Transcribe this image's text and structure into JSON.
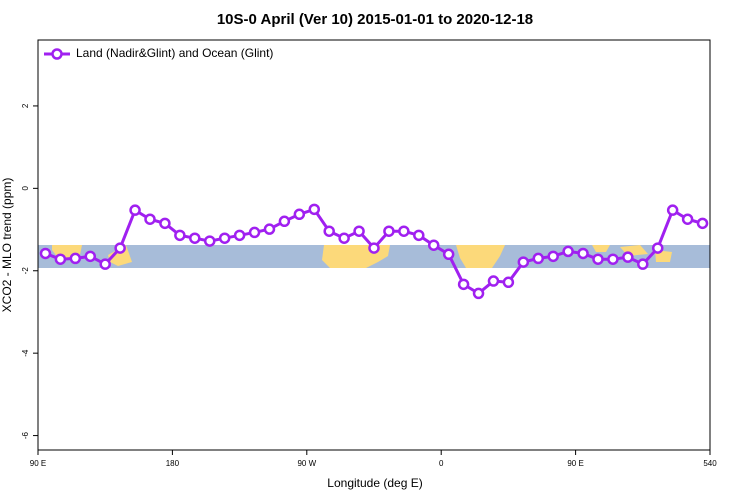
{
  "chart_data": {
    "type": "line",
    "title": "10S-0 April (Ver 10)   2015-01-01 to 2020-12-18",
    "x_label": "Longitude (deg E)",
    "y_label": "XCO2 - MLO trend (ppm)",
    "x": [
      95,
      105,
      115,
      125,
      135,
      145,
      155,
      165,
      175,
      185,
      195,
      205,
      215,
      225,
      235,
      245,
      255,
      265,
      275,
      285,
      295,
      305,
      315,
      325,
      335,
      345,
      355,
      365,
      375,
      385,
      395,
      405,
      415,
      425,
      435,
      445,
      455,
      465,
      475,
      485,
      495,
      505,
      515,
      525,
      535
    ],
    "series": [
      {
        "name": "Land (Nadir&Glint) and Ocean (Glint)",
        "color": "#a020f0",
        "values": [
          -1.58,
          -1.72,
          -1.7,
          -1.65,
          -1.84,
          -1.45,
          -0.53,
          -0.75,
          -0.85,
          -1.14,
          -1.21,
          -1.28,
          -1.21,
          -1.14,
          -1.07,
          -0.99,
          -0.8,
          -0.63,
          -0.51,
          -1.04,
          -1.21,
          -1.04,
          -1.45,
          -1.04,
          -1.04,
          -1.14,
          -1.38,
          -1.6,
          -2.33,
          -2.55,
          -2.25,
          -2.28,
          -1.79,
          -1.7,
          -1.65,
          -1.53,
          -1.58,
          -1.72,
          -1.72,
          -1.67,
          -1.84,
          -1.45,
          -0.53,
          -0.75,
          -0.85
        ]
      }
    ],
    "xlim": [
      90,
      540
    ],
    "xticks": [
      {
        "value": 90,
        "label": "90 E"
      },
      180,
      {
        "value": 270,
        "label": "90 W"
      },
      {
        "value": 360,
        "label": "0"
      },
      {
        "value": 450,
        "label": "90 E"
      },
      540
    ],
    "ylim": [
      -6.35,
      3.6
    ],
    "yticks": [
      -6,
      -4,
      -2,
      0,
      2
    ],
    "legend": "top-left"
  }
}
